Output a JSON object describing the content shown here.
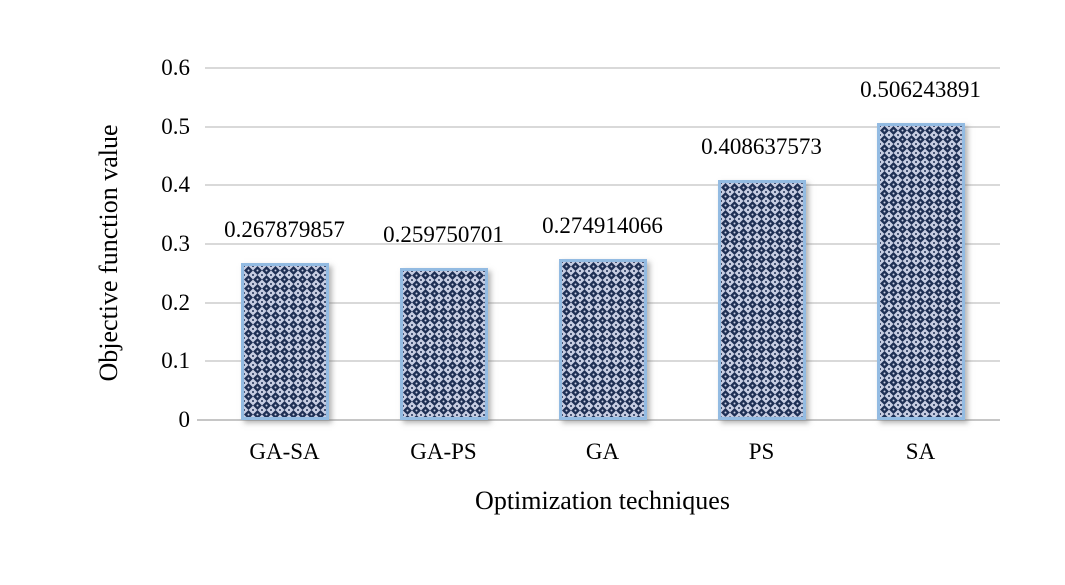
{
  "chart_data": {
    "type": "bar",
    "title": "",
    "categories": [
      "GA-SA",
      "GA-PS",
      "GA",
      "PS",
      "SA"
    ],
    "values": [
      0.267879857,
      0.259750701,
      0.274914066,
      0.408637573,
      0.506243891
    ],
    "value_labels": [
      "0.267879857",
      "0.259750701",
      "0.274914066",
      "0.408637573",
      "0.506243891"
    ],
    "xlabel": "Optimization techniques",
    "ylabel": "Objective function value",
    "ylim": [
      0,
      0.6
    ],
    "yticks": [
      "0",
      "0.1",
      "0.2",
      "0.3",
      "0.4",
      "0.5",
      "0.6"
    ],
    "grid": true,
    "legend": false,
    "bar_fill_style": "diagonal-checker-pattern",
    "colors": {
      "pattern_dark": "#1e2f54",
      "pattern_light": "#c7cde2",
      "bar_border": "#93bbe2",
      "gridline": "#d9d9d9",
      "axis_line": "#c6c6c6",
      "text": "#000000",
      "background": "#ffffff"
    }
  }
}
